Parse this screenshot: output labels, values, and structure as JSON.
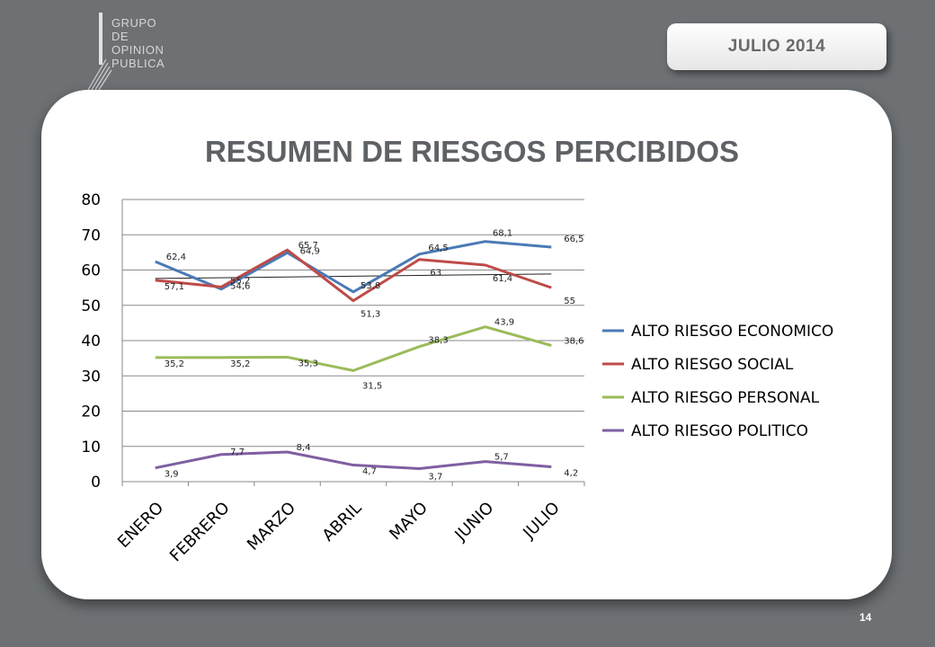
{
  "header": {
    "logo_lines": [
      "GRUPO",
      "DE",
      "OPINION",
      "PUBLICA"
    ],
    "date_badge": "JULIO  2014"
  },
  "page_number": "14",
  "colors": {
    "background": "#6d7174",
    "card": "#ffffff",
    "title": "#5e6266"
  },
  "chart_data": {
    "type": "line",
    "title": "RESUMEN DE RIESGOS PERCIBIDOS",
    "xlabel": "",
    "ylabel": "",
    "categories": [
      "ENERO",
      "FEBRERO",
      "MARZO",
      "ABRIL",
      "MAYO",
      "JUNIO",
      "JULIO"
    ],
    "ylim": [
      0,
      80
    ],
    "yticks": [
      "0",
      "10",
      "20",
      "30",
      "40",
      "50",
      "60",
      "70",
      "80"
    ],
    "grid": "horizontal",
    "legend_position": "right",
    "series": [
      {
        "name": "ALTO RIESGO ECONOMICO",
        "color": "#4a7ab5",
        "values": [
          62.4,
          54.6,
          64.9,
          53.8,
          64.5,
          68.1,
          66.5
        ],
        "labels": [
          "62,4",
          "54,6",
          "64,9",
          "53,8",
          "64,5",
          "68,1",
          "66,5"
        ]
      },
      {
        "name": "ALTO RIESGO SOCIAL",
        "color": "#be4b48",
        "values": [
          57.1,
          55.2,
          65.7,
          51.3,
          63,
          61.4,
          55
        ],
        "labels": [
          "57,1",
          "55,2",
          "65,7",
          "51,3",
          "63",
          "61,4",
          "55"
        ]
      },
      {
        "name": "ALTO RIESGO PERSONAL",
        "color": "#9bbb59",
        "values": [
          35.2,
          35.2,
          35.3,
          31.5,
          38.3,
          43.9,
          38.6
        ],
        "labels": [
          "35,2",
          "35,2",
          "35,3",
          "31,5",
          "38,3",
          "43,9",
          "38,6"
        ]
      },
      {
        "name": "ALTO RIESGO POLITICO",
        "color": "#7f5fa1",
        "values": [
          3.9,
          7.7,
          8.4,
          4.7,
          3.7,
          5.7,
          4.2
        ],
        "labels": [
          "3,9",
          "7,7",
          "8,4",
          "4,7",
          "3,7",
          "5,7",
          "4,2"
        ]
      }
    ],
    "trendline": {
      "color": "#222222",
      "start": 57.6,
      "end": 58.9
    }
  }
}
